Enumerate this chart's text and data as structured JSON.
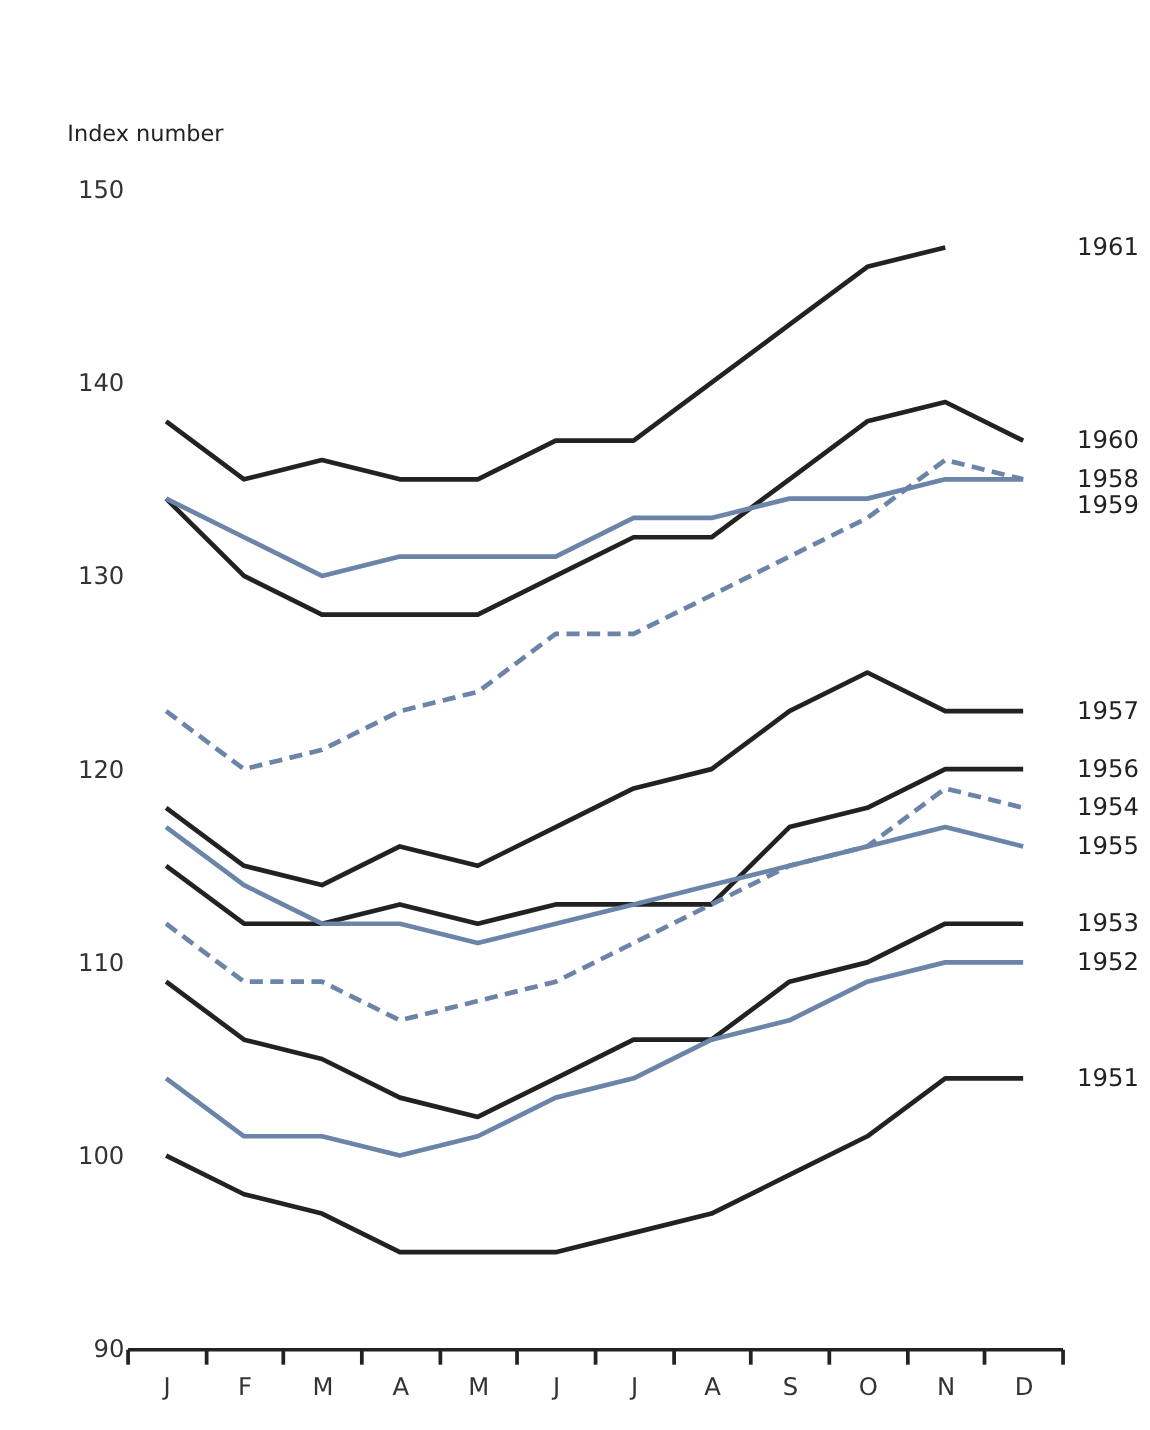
{
  "chart_data": {
    "type": "line",
    "ylabel": "Index number",
    "categories": [
      "J",
      "F",
      "M",
      "A",
      "M",
      "J",
      "J",
      "A",
      "S",
      "O",
      "N",
      "D"
    ],
    "ylim": [
      90,
      150
    ],
    "yticks": [
      90,
      100,
      110,
      120,
      130,
      140,
      150
    ],
    "grid": false,
    "marker": "none",
    "line_style": "solid",
    "series": [
      {
        "name": "1961",
        "color": "#222222",
        "values": [
          138,
          135,
          136,
          135,
          135,
          137,
          137,
          140,
          143,
          146,
          147,
          null
        ]
      },
      {
        "name": "1960",
        "color": "#222222",
        "values": [
          134,
          130,
          128,
          128,
          128,
          130,
          132,
          132,
          135,
          138,
          139,
          137
        ]
      },
      {
        "name": "1958",
        "color": "#6b84a8",
        "line_style": "dashed",
        "values": [
          123,
          120,
          121,
          123,
          124,
          127,
          127,
          129,
          131,
          133,
          136,
          135
        ]
      },
      {
        "name": "1959",
        "color": "#6b84a8",
        "values": [
          134,
          132,
          130,
          131,
          131,
          131,
          133,
          133,
          134,
          134,
          135,
          135
        ]
      },
      {
        "name": "1957",
        "color": "#222222",
        "values": [
          118,
          115,
          114,
          116,
          115,
          117,
          119,
          120,
          123,
          125,
          123,
          123
        ]
      },
      {
        "name": "1956",
        "color": "#222222",
        "values": [
          115,
          112,
          112,
          113,
          112,
          113,
          113,
          113,
          117,
          118,
          120,
          120
        ]
      },
      {
        "name": "1954",
        "color": "#6b84a8",
        "line_style": "dashed",
        "values": [
          112,
          109,
          109,
          107,
          108,
          109,
          111,
          113,
          115,
          116,
          119,
          118
        ]
      },
      {
        "name": "1955",
        "color": "#6b84a8",
        "values": [
          117,
          114,
          112,
          112,
          111,
          112,
          113,
          114,
          115,
          116,
          117,
          116
        ]
      },
      {
        "name": "1953",
        "color": "#222222",
        "values": [
          109,
          106,
          105,
          103,
          102,
          104,
          106,
          106,
          109,
          110,
          112,
          112
        ]
      },
      {
        "name": "1952",
        "color": "#6b84a8",
        "values": [
          104,
          101,
          101,
          100,
          101,
          103,
          104,
          106,
          107,
          109,
          110,
          110
        ]
      },
      {
        "name": "1951",
        "color": "#222222",
        "values": [
          100,
          98,
          97,
          95,
          95,
          95,
          96,
          97,
          99,
          101,
          104,
          104
        ]
      }
    ]
  }
}
